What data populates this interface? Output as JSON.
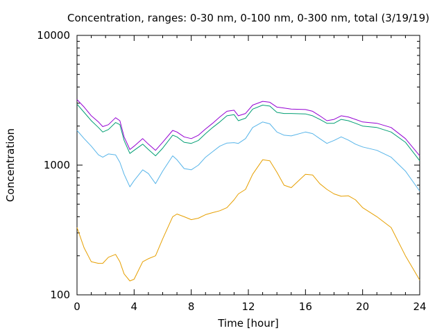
{
  "chart_data": {
    "type": "line",
    "title": "Concentration, ranges: 0-30 nm, 0-100 nm, 0-300 nm, total (3/19/19)",
    "xlabel": "Time [hour]",
    "ylabel": "Concentration",
    "xlim": [
      0,
      24
    ],
    "ylim": [
      100,
      10000
    ],
    "yscale": "log",
    "x_ticks": [
      0,
      4,
      8,
      12,
      16,
      20,
      24
    ],
    "x_tick_labels": [
      "0",
      "4",
      "8",
      "12",
      "16",
      "20",
      "24"
    ],
    "y_ticks": [
      100,
      1000,
      10000
    ],
    "y_tick_labels": [
      "100",
      "1000",
      "10000"
    ],
    "grid": false,
    "legend": "none",
    "x": [
      0,
      0.5,
      1,
      1.5,
      1.8,
      2.2,
      2.7,
      3.0,
      3.3,
      3.7,
      4.0,
      4.6,
      5.0,
      5.5,
      6.0,
      6.7,
      7.0,
      7.5,
      8.0,
      8.5,
      9.0,
      9.5,
      10.0,
      10.5,
      11.0,
      11.3,
      11.8,
      12.3,
      13.0,
      13.5,
      14.0,
      14.5,
      15.0,
      16.0,
      16.5,
      17.0,
      17.5,
      18.0,
      18.5,
      19.0,
      19.5,
      20.0,
      21.0,
      22.0,
      23.0,
      24.0
    ],
    "series": [
      {
        "color": "#9400d3",
        "values": [
          3200,
          2800,
          2400,
          2150,
          1980,
          2050,
          2320,
          2200,
          1650,
          1320,
          1400,
          1600,
          1450,
          1300,
          1500,
          1850,
          1800,
          1650,
          1600,
          1700,
          1900,
          2100,
          2350,
          2600,
          2650,
          2400,
          2500,
          2900,
          3100,
          3050,
          2800,
          2750,
          2700,
          2680,
          2600,
          2400,
          2200,
          2250,
          2400,
          2350,
          2250,
          2150,
          2100,
          1950,
          1600,
          1180
        ]
      },
      {
        "color": "#009e73",
        "values": [
          2950,
          2550,
          2200,
          1950,
          1800,
          1880,
          2130,
          2050,
          1550,
          1230,
          1300,
          1450,
          1320,
          1180,
          1350,
          1700,
          1650,
          1500,
          1470,
          1550,
          1750,
          1950,
          2150,
          2400,
          2450,
          2200,
          2300,
          2700,
          2900,
          2850,
          2550,
          2500,
          2500,
          2480,
          2400,
          2250,
          2100,
          2100,
          2250,
          2200,
          2100,
          2000,
          1950,
          1800,
          1500,
          1080
        ]
      },
      {
        "color": "#56b4e9",
        "values": [
          1850,
          1600,
          1400,
          1200,
          1150,
          1220,
          1200,
          1050,
          850,
          680,
          760,
          920,
          860,
          720,
          900,
          1180,
          1100,
          940,
          920,
          1000,
          1150,
          1270,
          1400,
          1480,
          1490,
          1470,
          1600,
          1950,
          2150,
          2080,
          1800,
          1700,
          1680,
          1800,
          1750,
          1600,
          1470,
          1550,
          1650,
          1560,
          1450,
          1380,
          1300,
          1150,
          900,
          630
        ]
      },
      {
        "color": "#e69f00",
        "values": [
          330,
          230,
          180,
          175,
          175,
          195,
          205,
          180,
          145,
          128,
          132,
          180,
          190,
          200,
          270,
          400,
          420,
          400,
          380,
          390,
          415,
          430,
          445,
          470,
          540,
          600,
          650,
          850,
          1100,
          1080,
          880,
          700,
          670,
          850,
          840,
          720,
          650,
          600,
          575,
          580,
          540,
          470,
          400,
          330,
          200,
          130
        ]
      }
    ]
  }
}
